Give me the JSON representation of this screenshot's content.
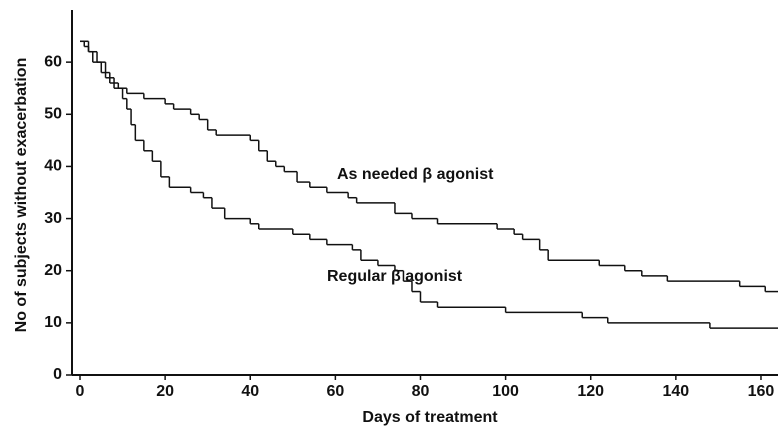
{
  "chart_data": {
    "type": "step",
    "xlabel": "Days of treatment",
    "ylabel": "No of subjects without exacerbation",
    "xlim": [
      0,
      164
    ],
    "ylim": [
      0,
      70
    ],
    "xticks": [
      0,
      20,
      40,
      60,
      80,
      100,
      120,
      140,
      160
    ],
    "yticks": [
      0,
      10,
      20,
      30,
      40,
      50,
      60
    ],
    "color": "#111111",
    "series": [
      {
        "name": "As needed β agonist",
        "x": [
          0,
          1,
          2,
          3,
          5,
          7,
          9,
          11,
          15,
          20,
          22,
          26,
          28,
          30,
          32,
          40,
          42,
          44,
          46,
          48,
          51,
          54,
          58,
          63,
          65,
          74,
          78,
          84,
          98,
          102,
          104,
          108,
          110,
          122,
          128,
          132,
          138,
          155,
          161
        ],
        "values": [
          64,
          63,
          62,
          60,
          58,
          56,
          55,
          54,
          53,
          52,
          51,
          50,
          49,
          47,
          46,
          45,
          43,
          41,
          40,
          39,
          37,
          36,
          35,
          34,
          33,
          31,
          30,
          29,
          28,
          27,
          26,
          24,
          22,
          21,
          20,
          19,
          18,
          17,
          16
        ]
      },
      {
        "name": "Regular β agonist",
        "x": [
          0,
          2,
          4,
          6,
          8,
          10,
          11,
          12,
          13,
          15,
          17,
          19,
          21,
          26,
          29,
          31,
          34,
          40,
          42,
          50,
          54,
          58,
          64,
          66,
          70,
          74,
          76,
          78,
          80,
          84,
          100,
          118,
          124,
          148
        ],
        "values": [
          64,
          62,
          60,
          57,
          55,
          53,
          51,
          48,
          45,
          43,
          41,
          38,
          36,
          35,
          34,
          32,
          30,
          29,
          28,
          27,
          26,
          25,
          24,
          22,
          21,
          20,
          18,
          16,
          14,
          13,
          12,
          11,
          10,
          9
        ]
      }
    ]
  }
}
